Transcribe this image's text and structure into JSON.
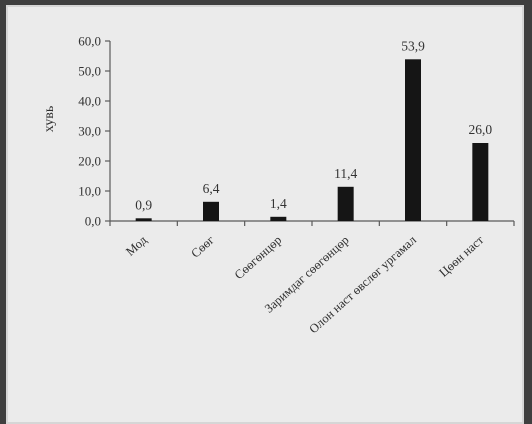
{
  "colors": {
    "frame": "#3f3f3f",
    "panel": "#ebebeb",
    "bar": "#151515",
    "axis": "#5a5a5a",
    "text": "#333333"
  },
  "chart_data": {
    "type": "bar",
    "title": "",
    "xlabel": "",
    "ylabel": "хувь",
    "ylim": [
      0,
      60
    ],
    "yticks": [
      "0,0",
      "10,0",
      "20,0",
      "30,0",
      "40,0",
      "50,0",
      "60,0"
    ],
    "categories": [
      "Мод",
      "Сөөг",
      "Сөөгөнцөр",
      "Заримдаг сөөгөнцөр",
      "Олон наст өвслөг ургамал",
      "Цөөн наст"
    ],
    "values": [
      0.9,
      6.4,
      1.4,
      11.4,
      53.9,
      26.0
    ],
    "value_labels": [
      "0,9",
      "6,4",
      "1,4",
      "11,4",
      "53,9",
      "26,0"
    ],
    "grid": false,
    "legend": "none"
  }
}
